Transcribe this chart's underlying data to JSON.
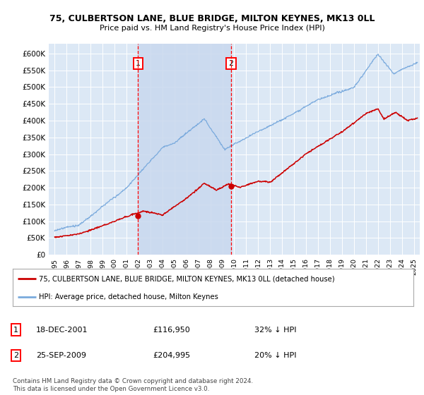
{
  "title1": "75, CULBERTSON LANE, BLUE BRIDGE, MILTON KEYNES, MK13 0LL",
  "title2": "Price paid vs. HM Land Registry's House Price Index (HPI)",
  "ylabel_ticks": [
    "£0",
    "£50K",
    "£100K",
    "£150K",
    "£200K",
    "£250K",
    "£300K",
    "£350K",
    "£400K",
    "£450K",
    "£500K",
    "£550K",
    "£600K"
  ],
  "ytick_values": [
    0,
    50000,
    100000,
    150000,
    200000,
    250000,
    300000,
    350000,
    400000,
    450000,
    500000,
    550000,
    600000
  ],
  "ylim": [
    0,
    630000
  ],
  "xlim_start": 1994.5,
  "xlim_end": 2025.5,
  "plot_bg_color": "#dce8f5",
  "grid_color": "#ffffff",
  "hpi_color": "#7aaadd",
  "price_color": "#cc0000",
  "shade_color": "#c8d8ee",
  "marker1_x": 2001.96,
  "marker1_y": 116950,
  "marker1_label": "1",
  "marker1_date": "18-DEC-2001",
  "marker1_price": "£116,950",
  "marker1_hpi": "32% ↓ HPI",
  "marker2_x": 2009.73,
  "marker2_y": 204995,
  "marker2_label": "2",
  "marker2_date": "25-SEP-2009",
  "marker2_price": "£204,995",
  "marker2_hpi": "20% ↓ HPI",
  "legend_line1": "75, CULBERTSON LANE, BLUE BRIDGE, MILTON KEYNES, MK13 0LL (detached house)",
  "legend_line2": "HPI: Average price, detached house, Milton Keynes",
  "footer": "Contains HM Land Registry data © Crown copyright and database right 2024.\nThis data is licensed under the Open Government Licence v3.0."
}
